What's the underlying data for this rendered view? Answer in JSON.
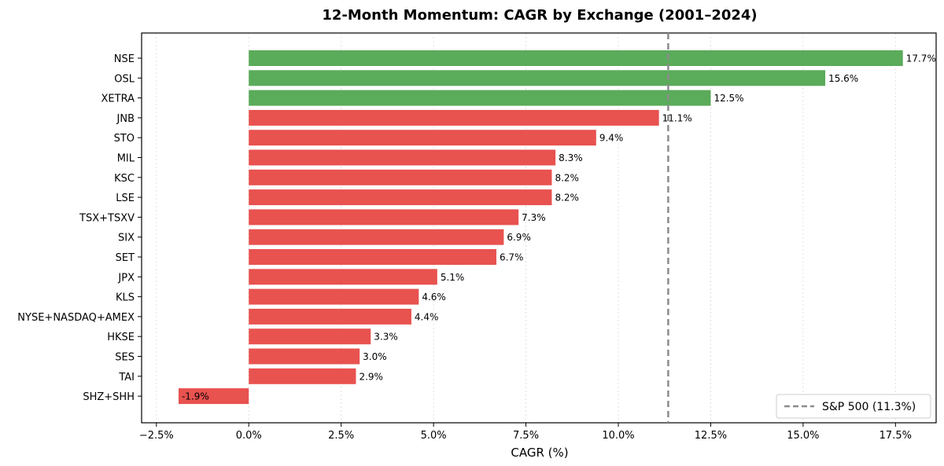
{
  "chart_data": {
    "type": "bar",
    "orientation": "horizontal",
    "title": "12-Month Momentum: CAGR by Exchange (2001–2024)",
    "xlabel": "CAGR (%)",
    "ylabel": "",
    "xlim": [
      -2.9,
      18.6
    ],
    "xticks": [
      -2.5,
      0,
      2.5,
      5,
      7.5,
      10,
      12.5,
      15,
      17.5
    ],
    "xtick_labels": [
      "−2.5%",
      "0.0%",
      "2.5%",
      "5.0%",
      "7.5%",
      "10.0%",
      "12.5%",
      "15.0%",
      "17.5%"
    ],
    "grid": "vertical dotted",
    "categories": [
      "NSE",
      "OSL",
      "XETRA",
      "JNB",
      "STO",
      "MIL",
      "KSC",
      "LSE",
      "TSX+TSXV",
      "SIX",
      "SET",
      "JPX",
      "KLS",
      "NYSE+NASDAQ+AMEX",
      "HKSE",
      "SES",
      "TAI",
      "SHZ+SHH"
    ],
    "values": [
      17.7,
      15.6,
      12.5,
      11.1,
      9.4,
      8.3,
      8.2,
      8.2,
      7.3,
      6.9,
      6.7,
      5.1,
      4.6,
      4.4,
      3.3,
      3.0,
      2.9,
      -1.9
    ],
    "value_labels": [
      "17.7%",
      "15.6%",
      "12.5%",
      "11.1%",
      "9.4%",
      "8.3%",
      "8.2%",
      "8.2%",
      "7.3%",
      "6.9%",
      "6.7%",
      "5.1%",
      "4.6%",
      "4.4%",
      "3.3%",
      "3.0%",
      "2.9%",
      "-1.9%"
    ],
    "colors": {
      "above_benchmark": "#5aab5a",
      "below_benchmark": "#e8524f",
      "benchmark_line": "#8c8c8c"
    },
    "reference_line": {
      "value": 11.35,
      "label": "S&P 500 (11.3%)",
      "style": "dashed"
    },
    "legend": {
      "placement": "lower-right",
      "entries": [
        "S&P 500 (11.3%)"
      ]
    }
  }
}
